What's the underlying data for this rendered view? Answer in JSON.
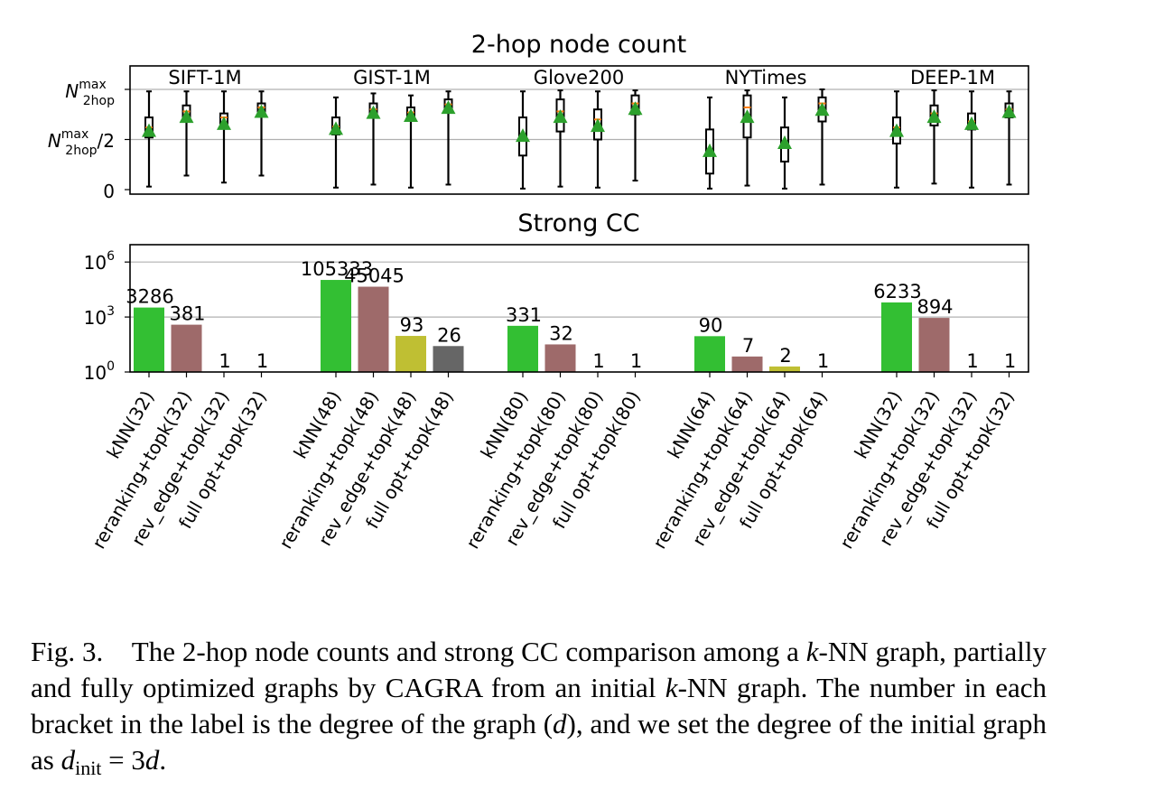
{
  "chart_data": [
    {
      "type": "box",
      "title": "2-hop node count",
      "y_tick_labels": {
        "max_label": "N",
        "max_sup": "max",
        "max_sub": "2hop",
        "half_suffix": "/2",
        "zero": "0"
      },
      "ylim": [
        0,
        1.05
      ],
      "grid": "horizontal",
      "groups": [
        {
          "name": "SIFT-1M",
          "boxes": [
            {
              "min": 0.03,
              "q1": 0.52,
              "median": 0.62,
              "q3": 0.72,
              "max": 0.98,
              "mean": 0.58
            },
            {
              "min": 0.14,
              "q1": 0.72,
              "median": 0.78,
              "q3": 0.84,
              "max": 0.98,
              "mean": 0.72
            },
            {
              "min": 0.07,
              "q1": 0.66,
              "median": 0.72,
              "q3": 0.76,
              "max": 0.98,
              "mean": 0.65
            },
            {
              "min": 0.14,
              "q1": 0.78,
              "median": 0.82,
              "q3": 0.86,
              "max": 0.98,
              "mean": 0.77
            }
          ]
        },
        {
          "name": "GIST-1M",
          "boxes": [
            {
              "min": 0.02,
              "q1": 0.55,
              "median": 0.63,
              "q3": 0.72,
              "max": 0.92,
              "mean": 0.6
            },
            {
              "min": 0.05,
              "q1": 0.74,
              "median": 0.8,
              "q3": 0.86,
              "max": 0.96,
              "mean": 0.76
            },
            {
              "min": 0.02,
              "q1": 0.71,
              "median": 0.77,
              "q3": 0.82,
              "max": 0.94,
              "mean": 0.73
            },
            {
              "min": 0.05,
              "q1": 0.8,
              "median": 0.85,
              "q3": 0.9,
              "max": 0.98,
              "mean": 0.81
            }
          ]
        },
        {
          "name": "Glove200",
          "boxes": [
            {
              "min": 0.01,
              "q1": 0.34,
              "median": 0.5,
              "q3": 0.72,
              "max": 0.98,
              "mean": 0.53
            },
            {
              "min": 0.03,
              "q1": 0.58,
              "median": 0.78,
              "q3": 0.9,
              "max": 0.99,
              "mean": 0.72
            },
            {
              "min": 0.02,
              "q1": 0.5,
              "median": 0.7,
              "q3": 0.8,
              "max": 0.98,
              "mean": 0.63
            },
            {
              "min": 0.09,
              "q1": 0.75,
              "median": 0.86,
              "q3": 0.94,
              "max": 0.99,
              "mean": 0.8
            }
          ]
        },
        {
          "name": "NYTimes",
          "boxes": [
            {
              "min": 0.01,
              "q1": 0.16,
              "median": 0.36,
              "q3": 0.6,
              "max": 0.92,
              "mean": 0.38
            },
            {
              "min": 0.04,
              "q1": 0.52,
              "median": 0.82,
              "q3": 0.94,
              "max": 0.99,
              "mean": 0.72
            },
            {
              "min": 0.01,
              "q1": 0.28,
              "median": 0.46,
              "q3": 0.62,
              "max": 0.92,
              "mean": 0.46
            },
            {
              "min": 0.05,
              "q1": 0.68,
              "median": 0.86,
              "q3": 0.92,
              "max": 1.0,
              "mean": 0.79
            }
          ]
        },
        {
          "name": "DEEP-1M",
          "boxes": [
            {
              "min": 0.02,
              "q1": 0.46,
              "median": 0.62,
              "q3": 0.72,
              "max": 0.98,
              "mean": 0.58
            },
            {
              "min": 0.06,
              "q1": 0.64,
              "median": 0.76,
              "q3": 0.84,
              "max": 0.99,
              "mean": 0.72
            },
            {
              "min": 0.02,
              "q1": 0.6,
              "median": 0.68,
              "q3": 0.76,
              "max": 0.98,
              "mean": 0.65
            },
            {
              "min": 0.05,
              "q1": 0.72,
              "median": 0.8,
              "q3": 0.86,
              "max": 0.98,
              "mean": 0.77
            }
          ]
        }
      ]
    },
    {
      "type": "bar",
      "title": "Strong CC",
      "y_scale": "log",
      "ylim": [
        1,
        2000000
      ],
      "y_ticks": [
        {
          "base": "10",
          "exp": "6",
          "value": 1000000
        },
        {
          "base": "10",
          "exp": "3",
          "value": 1000
        },
        {
          "base": "10",
          "exp": "0",
          "value": 1
        }
      ],
      "grid": "horizontal",
      "groups": [
        {
          "name": "SIFT-1M",
          "bars": [
            {
              "category": "kNN(32)",
              "value": 3286,
              "label": "3286",
              "color": "#33bf33"
            },
            {
              "category": "reranking+topk(32)",
              "value": 381,
              "label": "381",
              "color": "#9e6a6a"
            },
            {
              "category": "rev_edge+topk(32)",
              "value": 1,
              "label": "1",
              "color": "#bfbf33"
            },
            {
              "category": "full opt+topk(32)",
              "value": 1,
              "label": "1",
              "color": "#666666"
            }
          ]
        },
        {
          "name": "GIST-1M",
          "bars": [
            {
              "category": "kNN(48)",
              "value": 105333,
              "label": "105333",
              "color": "#33bf33"
            },
            {
              "category": "reranking+topk(48)",
              "value": 45045,
              "label": "45045",
              "color": "#9e6a6a"
            },
            {
              "category": "rev_edge+topk(48)",
              "value": 93,
              "label": "93",
              "color": "#bfbf33"
            },
            {
              "category": "full opt+topk(48)",
              "value": 26,
              "label": "26",
              "color": "#666666"
            }
          ]
        },
        {
          "name": "Glove200",
          "bars": [
            {
              "category": "kNN(80)",
              "value": 331,
              "label": "331",
              "color": "#33bf33"
            },
            {
              "category": "reranking+topk(80)",
              "value": 32,
              "label": "32",
              "color": "#9e6a6a"
            },
            {
              "category": "rev_edge+topk(80)",
              "value": 1,
              "label": "1",
              "color": "#bfbf33"
            },
            {
              "category": "full opt+topk(80)",
              "value": 1,
              "label": "1",
              "color": "#666666"
            }
          ]
        },
        {
          "name": "NYTimes",
          "bars": [
            {
              "category": "kNN(64)",
              "value": 90,
              "label": "90",
              "color": "#33bf33"
            },
            {
              "category": "reranking+topk(64)",
              "value": 7,
              "label": "7",
              "color": "#9e6a6a"
            },
            {
              "category": "rev_edge+topk(64)",
              "value": 2,
              "label": "2",
              "color": "#bfbf33"
            },
            {
              "category": "full opt+topk(64)",
              "value": 1,
              "label": "1",
              "color": "#666666"
            }
          ]
        },
        {
          "name": "DEEP-1M",
          "bars": [
            {
              "category": "kNN(32)",
              "value": 6233,
              "label": "6233",
              "color": "#33bf33"
            },
            {
              "category": "reranking+topk(32)",
              "value": 894,
              "label": "894",
              "color": "#9e6a6a"
            },
            {
              "category": "rev_edge+topk(32)",
              "value": 1,
              "label": "1",
              "color": "#bfbf33"
            },
            {
              "category": "full opt+topk(32)",
              "value": 1,
              "label": "1",
              "color": "#666666"
            }
          ]
        }
      ]
    }
  ],
  "colors": {
    "box_mean_marker": "#2ca02c",
    "box_median": "#ff7f0e",
    "grid": "#b0b0b0"
  },
  "caption": {
    "fig_label": "Fig. 3.",
    "text_1": "The 2-hop node counts and strong CC comparison among a ",
    "k_1": "k",
    "text_2": "-NN graph, partially and fully optimized graphs by CAGRA from an initial ",
    "k_2": "k",
    "text_3": "-NN graph. The number in each bracket in the label is the degree of the graph (",
    "d_1": "d",
    "text_4": "), and we set the degree of the initial graph as ",
    "d_init_d": "d",
    "d_init_sub": "init",
    "eq": " = 3",
    "d_2": "d",
    "end": "."
  }
}
